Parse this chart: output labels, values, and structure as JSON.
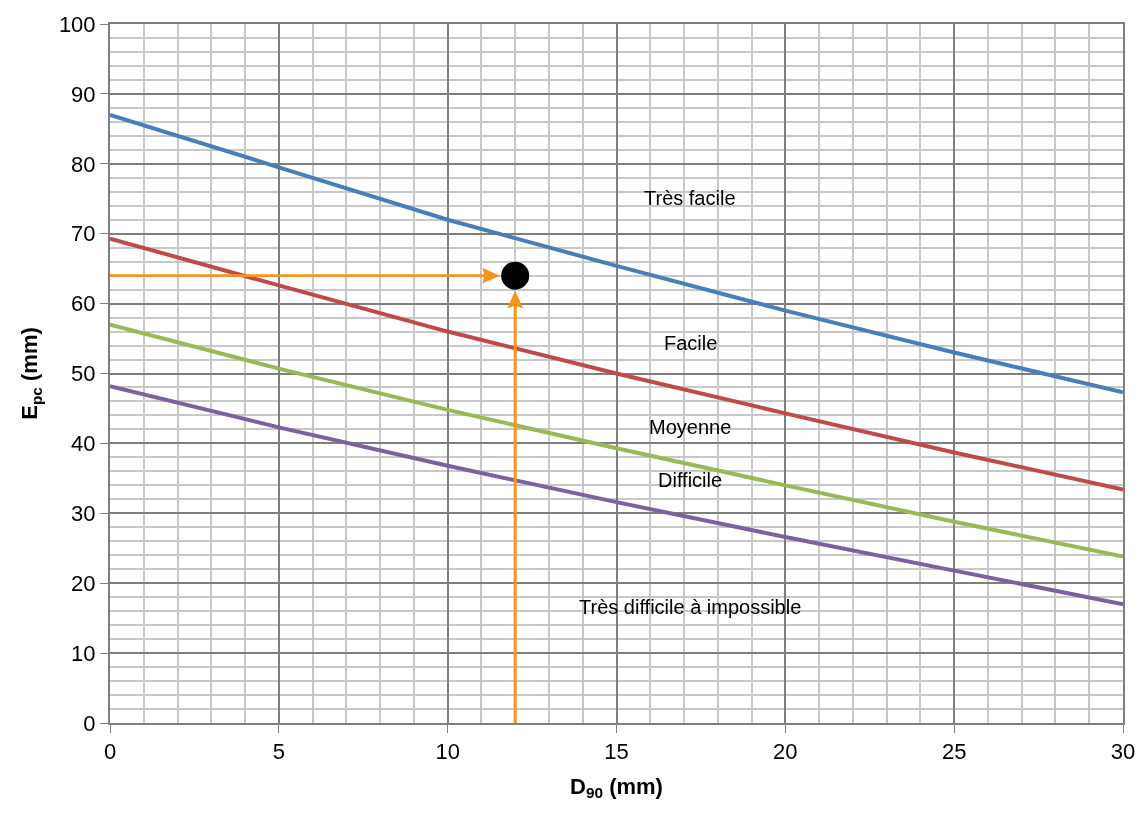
{
  "chart_data": {
    "type": "line",
    "xlabel": "D$_{90}$ (mm)",
    "ylabel": "E$_{pc}$ (mm)",
    "x": [
      0,
      5,
      10,
      15,
      20,
      25,
      30
    ],
    "xlim": [
      0,
      30
    ],
    "xticks": [
      0,
      5,
      10,
      15,
      20,
      25,
      30
    ],
    "ylim": [
      0,
      100
    ],
    "yticks": [
      0,
      10,
      20,
      30,
      40,
      50,
      60,
      70,
      80,
      90,
      100
    ],
    "grid": true,
    "marker": "none",
    "line_style": "solid",
    "series": [
      {
        "color": "#4a7ebb",
        "values": [
          87,
          79.5,
          72,
          65.4,
          59,
          53,
          47.3
        ]
      },
      {
        "color": "#be4b48",
        "values": [
          69.3,
          62.6,
          56,
          50,
          44.3,
          38.7,
          33.4
        ]
      },
      {
        "color": "#98b954",
        "values": [
          57,
          50.7,
          44.8,
          39.3,
          34,
          28.8,
          23.8
        ]
      },
      {
        "color": "#7d60a0",
        "values": [
          48.2,
          42.3,
          36.8,
          31.6,
          26.6,
          21.8,
          17
        ]
      },
      {
        "type": "scatter",
        "color": "#000000",
        "x": [
          12
        ],
        "values": [
          64
        ],
        "marker": "circle"
      }
    ],
    "annotations": [
      "Très facile",
      "Facile",
      "Moyenne",
      "Difficile",
      "Très difficile à impossible"
    ]
  }
}
